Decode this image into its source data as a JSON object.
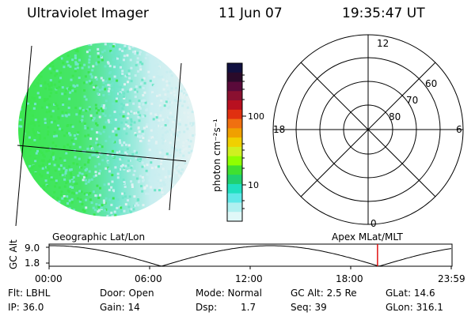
{
  "header": {
    "instrument": "Ultraviolet Imager",
    "date": "11 Jun 07",
    "time": "19:35:47 UT"
  },
  "colorbar": {
    "unit_label": "photon cm⁻²s⁻¹",
    "ticks": [
      "100",
      "10"
    ],
    "colors": [
      "#101040",
      "#2a0a2a",
      "#5a0a3a",
      "#8a1030",
      "#b81020",
      "#e03010",
      "#f07010",
      "#f0a000",
      "#f0d000",
      "#d0f020",
      "#90ff00",
      "#40e030",
      "#20d070",
      "#20e0c0",
      "#60e8e8",
      "#b0f0f0",
      "#e0f8f8"
    ]
  },
  "image_panel": {
    "left_label": "Geographic Lat/Lon",
    "colors": {
      "bright": "#3ce650",
      "mid": "#6ee6c8",
      "dim": "#c8eef0",
      "pale": "#e2f2f2"
    }
  },
  "polar_plot": {
    "mlt_labels": [
      "12",
      "18",
      "6",
      "0"
    ],
    "lat_labels": [
      "60",
      "70",
      "80"
    ],
    "right_label": "Apex MLat/MLT"
  },
  "altitude_strip": {
    "ylabel": "GC Alt",
    "y_ticks": [
      "9.0",
      "1.8"
    ],
    "x_ticks": [
      "00:00",
      "06:00",
      "12:00",
      "18:00",
      "23:59"
    ],
    "marker_color": "#e01010",
    "marker_time_hours": 19.6
  },
  "info": {
    "filter": "Flt: LBHL",
    "ip": "IP: 36.0",
    "door": "Door: Open",
    "gain": "Gain: 14",
    "mode": "Mode: Normal",
    "dsp_label": "Dsp:",
    "dsp_value": "1.7",
    "gc_alt": "GC Alt: 2.5 Re",
    "seq": "Seq: 39",
    "glat": "GLat: 14.6",
    "glon": "GLon: 316.1"
  }
}
